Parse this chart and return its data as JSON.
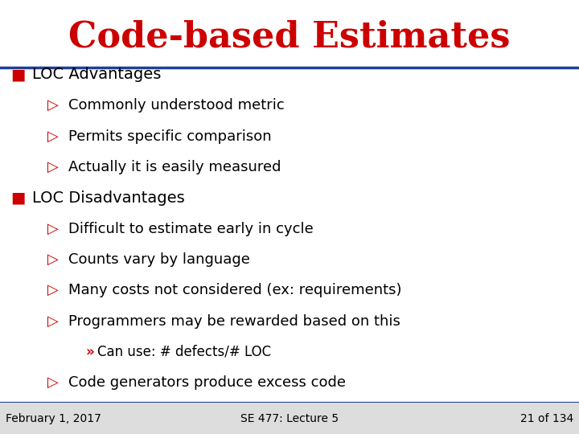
{
  "title": "Code-based Estimates",
  "title_color": "#CC0000",
  "title_fontsize": 32,
  "title_font": "DejaVu Serif",
  "bg_color": "#FFFFFF",
  "header_line_color": "#1F3F99",
  "bullet_color": "#CC0000",
  "text_color": "#000000",
  "footer_bg_color": "#DDDDDD",
  "footer_left": "February 1, 2017",
  "footer_center": "SE 477: Lecture 5",
  "footer_right": "21 of 134",
  "footer_fontsize": 10,
  "main_fontsize": 14,
  "sub_fontsize": 13,
  "sub2_fontsize": 12,
  "lines": [
    {
      "level": 0,
      "text": "LOC Advantages"
    },
    {
      "level": 1,
      "text": "Commonly understood metric"
    },
    {
      "level": 1,
      "text": "Permits specific comparison"
    },
    {
      "level": 1,
      "text": "Actually it is easily measured"
    },
    {
      "level": 0,
      "text": "LOC Disadvantages"
    },
    {
      "level": 1,
      "text": "Difficult to estimate early in cycle"
    },
    {
      "level": 1,
      "text": "Counts vary by language"
    },
    {
      "level": 1,
      "text": "Many costs not considered (ex: requirements)"
    },
    {
      "level": 1,
      "text": "Programmers may be rewarded based on this"
    },
    {
      "level": 2,
      "text": "Can use: # defects/# LOC"
    },
    {
      "level": 1,
      "text": "Code generators produce excess code"
    }
  ]
}
